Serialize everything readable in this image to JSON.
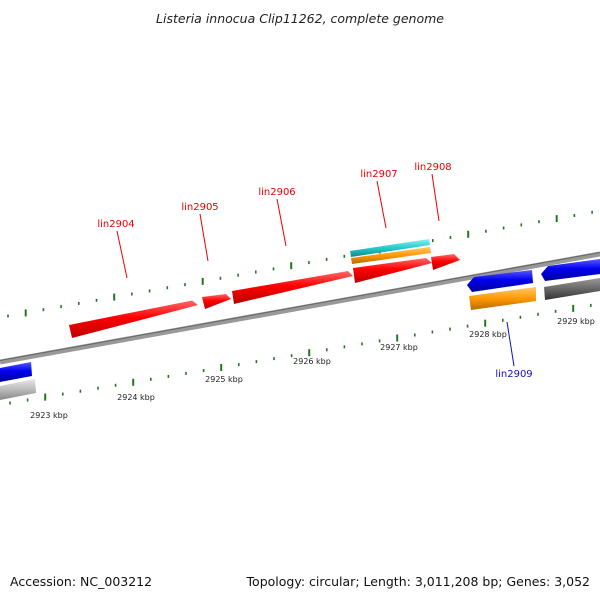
{
  "title": "Listeria innocua Clip11262, complete genome",
  "footer": {
    "accession_label": "Accession:",
    "accession": "NC_003212",
    "topology_label": "Topology:",
    "topology": "circular",
    "length_label": "Length:",
    "length": "3,011,208 bp",
    "genes_label": "Genes:",
    "genes": "3,052"
  },
  "ruler": {
    "labels": [
      "2923 kbp",
      "2924 kbp",
      "2925 kbp",
      "2926 kbp",
      "2927 kbp",
      "2928 kbp",
      "2929 kbp"
    ]
  },
  "genes": [
    {
      "name": "lin2904",
      "strand": "+",
      "color": "#ff0000"
    },
    {
      "name": "lin2905",
      "strand": "+",
      "color": "#ff0000"
    },
    {
      "name": "lin2906",
      "strand": "+",
      "color": "#ff0000"
    },
    {
      "name": "lin2907",
      "strand": "+",
      "color": "#ff0000"
    },
    {
      "name": "lin2908",
      "strand": "+",
      "color": "#ff0000"
    },
    {
      "name": "lin2909",
      "strand": "-",
      "color": "#0000ee"
    }
  ],
  "colors": {
    "forward_gene": "#ff0000",
    "reverse_gene": "#0000ee",
    "cyan_feature": "#22cccc",
    "orange_feature": "#ff9900",
    "dark_gray_feature": "#666666",
    "light_gray_feature": "#bbbbbb",
    "ruler_tick": "#227722",
    "backbone": "#888888"
  }
}
